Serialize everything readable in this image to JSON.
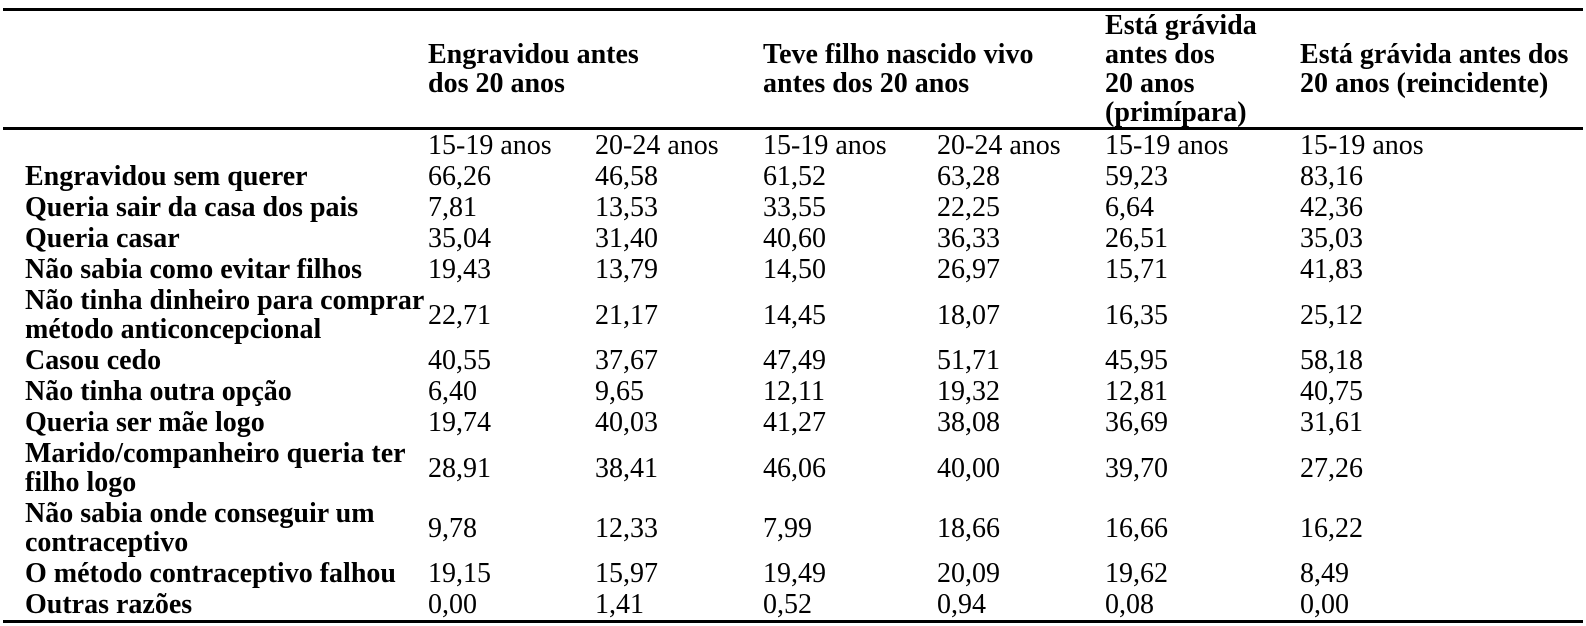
{
  "table": {
    "group_headers": [
      {
        "label": "Engravidou antes\ndos 20 anos",
        "colspan": 2
      },
      {
        "label": "Teve filho nascido vivo\nantes dos 20 anos",
        "colspan": 2
      },
      {
        "label": "Está grávida\nantes dos\n20 anos\n(primípara)",
        "colspan": 1
      },
      {
        "label": "Está grávida antes dos\n20 anos (reincidente)",
        "colspan": 1
      }
    ],
    "sub_headers": [
      "15-19 anos",
      "20-24 anos",
      "15-19 anos",
      "20-24 anos",
      "15-19 anos",
      "15-19 anos"
    ],
    "rows": [
      {
        "label": "Engravidou sem querer",
        "values": [
          "66,26",
          "46,58",
          "61,52",
          "63,28",
          "59,23",
          "83,16"
        ]
      },
      {
        "label": "Queria sair da casa dos pais",
        "values": [
          "7,81",
          "13,53",
          "33,55",
          "22,25",
          "6,64",
          "42,36"
        ]
      },
      {
        "label": "Queria casar",
        "values": [
          "35,04",
          "31,40",
          "40,60",
          "36,33",
          "26,51",
          "35,03"
        ]
      },
      {
        "label": "Não sabia como evitar filhos",
        "values": [
          "19,43",
          "13,79",
          "14,50",
          "26,97",
          "15,71",
          "41,83"
        ]
      },
      {
        "label": "Não tinha dinheiro para comprar\nmétodo anticoncepcional",
        "values": [
          "22,71",
          "21,17",
          "14,45",
          "18,07",
          "16,35",
          "25,12"
        ]
      },
      {
        "label": "Casou cedo",
        "values": [
          "40,55",
          "37,67",
          "47,49",
          "51,71",
          "45,95",
          "58,18"
        ]
      },
      {
        "label": "Não tinha outra opção",
        "values": [
          "6,40",
          "9,65",
          "12,11",
          "19,32",
          "12,81",
          "40,75"
        ]
      },
      {
        "label": "Queria ser mãe logo",
        "values": [
          "19,74",
          "40,03",
          "41,27",
          "38,08",
          "36,69",
          "31,61"
        ]
      },
      {
        "label": "Marido/companheiro queria ter\nfilho logo",
        "values": [
          "28,91",
          "38,41",
          "46,06",
          "40,00",
          "39,70",
          "27,26"
        ]
      },
      {
        "label": "Não sabia onde conseguir um\ncontraceptivo",
        "values": [
          "9,78",
          "12,33",
          "7,99",
          "18,66",
          "16,66",
          "16,22"
        ]
      },
      {
        "label": "O método contraceptivo falhou",
        "values": [
          "19,15",
          "15,97",
          "19,49",
          "20,09",
          "19,62",
          "8,49"
        ]
      },
      {
        "label": "Outras razões",
        "values": [
          "0,00",
          "1,41",
          "0,52",
          "0,94",
          "0,08",
          "0,00"
        ]
      }
    ]
  },
  "chart_data": {
    "type": "table",
    "row_labels": [
      "Engravidou sem querer",
      "Queria sair da casa dos pais",
      "Queria casar",
      "Não sabia como evitar filhos",
      "Não tinha dinheiro para comprar método anticoncepcional",
      "Casou cedo",
      "Não tinha outra opção",
      "Queria ser mãe logo",
      "Marido/companheiro queria ter filho logo",
      "Não sabia onde conseguir um contraceptivo",
      "O método contraceptivo falhou",
      "Outras razões"
    ],
    "columns": [
      {
        "group": "Engravidou antes dos 20 anos",
        "age": "15-19 anos",
        "values": [
          66.26,
          7.81,
          35.04,
          19.43,
          22.71,
          40.55,
          6.4,
          19.74,
          28.91,
          9.78,
          19.15,
          0.0
        ]
      },
      {
        "group": "Engravidou antes dos 20 anos",
        "age": "20-24 anos",
        "values": [
          46.58,
          13.53,
          31.4,
          13.79,
          21.17,
          37.67,
          9.65,
          40.03,
          38.41,
          12.33,
          15.97,
          1.41
        ]
      },
      {
        "group": "Teve filho nascido vivo antes dos 20 anos",
        "age": "15-19 anos",
        "values": [
          61.52,
          33.55,
          40.6,
          14.5,
          14.45,
          47.49,
          12.11,
          41.27,
          46.06,
          7.99,
          19.49,
          0.52
        ]
      },
      {
        "group": "Teve filho nascido vivo antes dos 20 anos",
        "age": "20-24 anos",
        "values": [
          63.28,
          22.25,
          36.33,
          26.97,
          18.07,
          51.71,
          19.32,
          38.08,
          40.0,
          18.66,
          20.09,
          0.94
        ]
      },
      {
        "group": "Está grávida antes dos 20 anos (primípara)",
        "age": "15-19 anos",
        "values": [
          59.23,
          6.64,
          26.51,
          15.71,
          16.35,
          45.95,
          12.81,
          36.69,
          39.7,
          16.66,
          19.62,
          0.08
        ]
      },
      {
        "group": "Está grávida antes dos 20 anos (reincidente)",
        "age": "15-19 anos",
        "values": [
          83.16,
          42.36,
          35.03,
          41.83,
          25.12,
          58.18,
          40.75,
          31.61,
          27.26,
          16.22,
          8.49,
          0.0
        ]
      }
    ]
  }
}
